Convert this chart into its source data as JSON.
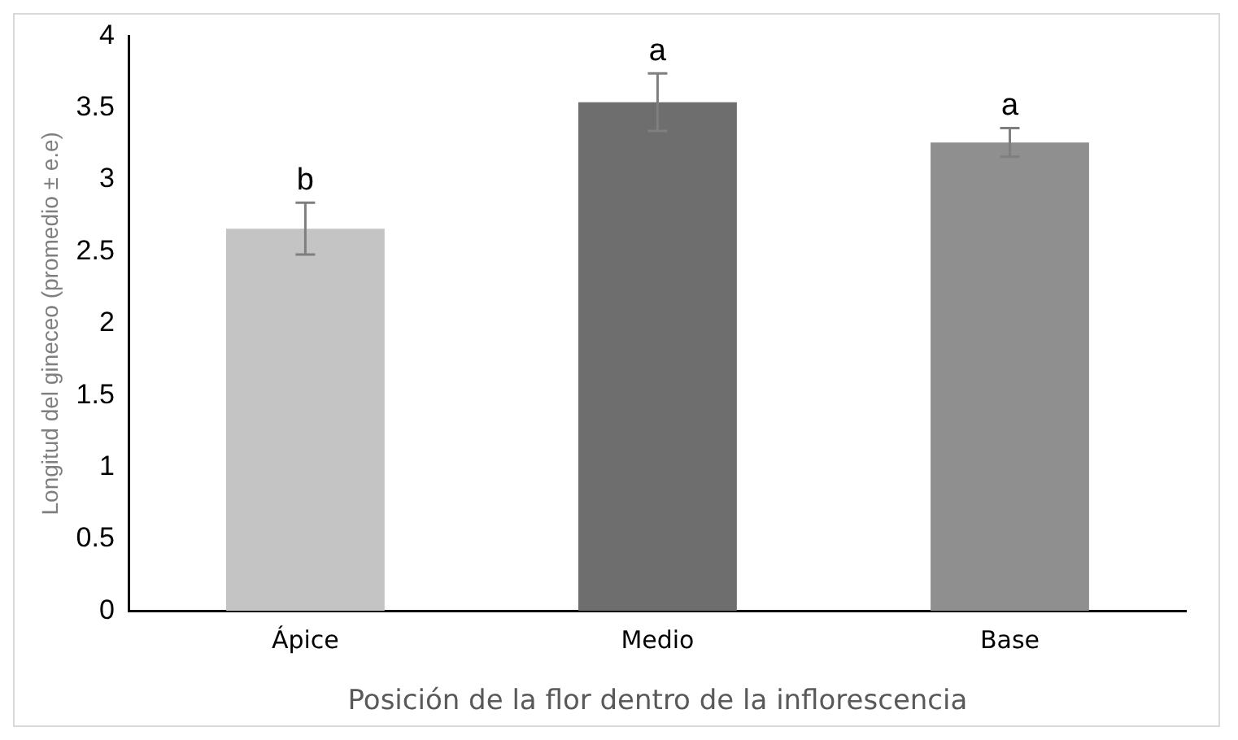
{
  "chart_data": {
    "type": "bar",
    "xlabel": "Posición de la flor dentro de la inflorescencia",
    "ylabel": "Longitud del gineceo (promedio ± e.e)",
    "categories": [
      "Ápice",
      "Medio",
      "Base"
    ],
    "values": [
      2.66,
      3.54,
      3.26
    ],
    "errors": [
      0.18,
      0.2,
      0.1
    ],
    "colors": [
      "#c4c4c4",
      "#6e6e6e",
      "#8f8f8f"
    ],
    "ylim": [
      0,
      4
    ],
    "yticks": [
      0,
      0.5,
      1,
      1.5,
      2,
      2.5,
      3,
      3.5,
      4
    ],
    "grid": false,
    "legend": false,
    "annotations": [
      {
        "text": "b",
        "x": "Ápice",
        "y": 2.84
      },
      {
        "text": "a",
        "x": "Medio",
        "y": 3.74
      },
      {
        "text": "a",
        "x": "Base",
        "y": 3.36
      }
    ]
  }
}
